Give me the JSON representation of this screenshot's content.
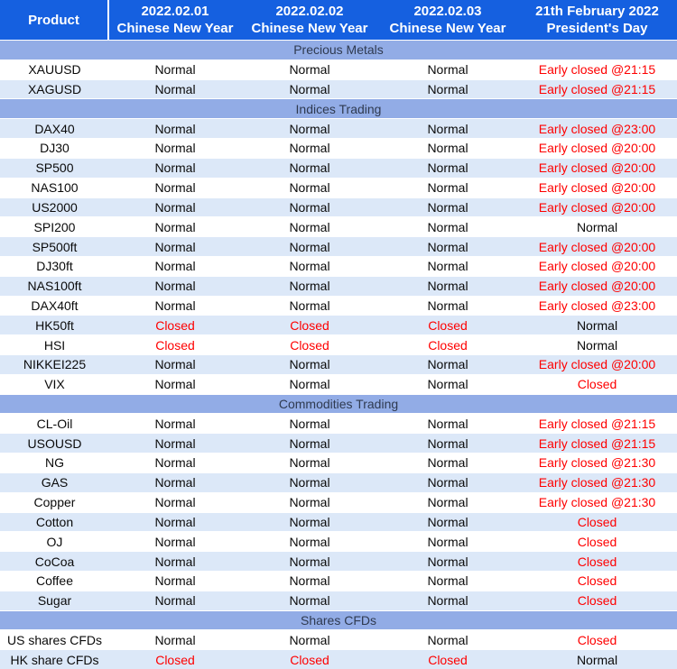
{
  "legend": {
    "normal_value": "Normal"
  },
  "colors": {
    "header_bg": "#1560e0",
    "header_text": "#ffffff",
    "section_bg": "#92ace6",
    "section_text": "#2f3a50",
    "row_alt_bg": "#dce8f8",
    "row_bg": "#ffffff",
    "status_red": "#fe0000",
    "body_text": "#0a0a0a"
  },
  "header": {
    "product_label": "Product",
    "columns": [
      {
        "line1": "2022.02.01",
        "line2": "Chinese New Year"
      },
      {
        "line1": "2022.02.02",
        "line2": "Chinese New Year"
      },
      {
        "line1": "2022.02.03",
        "line2": "Chinese New Year"
      },
      {
        "line1": "21th February 2022",
        "line2": "President's Day"
      }
    ]
  },
  "sections": [
    {
      "title": "Precious Metals",
      "rows": [
        {
          "product": "XAUUSD",
          "shade": false,
          "values": [
            "Normal",
            "Normal",
            "Normal",
            "Early closed @21:15"
          ]
        },
        {
          "product": "XAGUSD",
          "shade": true,
          "values": [
            "Normal",
            "Normal",
            "Normal",
            "Early closed @21:15"
          ]
        }
      ]
    },
    {
      "title": "Indices Trading",
      "rows": [
        {
          "product": "DAX40",
          "shade": true,
          "values": [
            "Normal",
            "Normal",
            "Normal",
            "Early closed @23:00"
          ]
        },
        {
          "product": "DJ30",
          "shade": false,
          "values": [
            "Normal",
            "Normal",
            "Normal",
            "Early closed @20:00"
          ]
        },
        {
          "product": "SP500",
          "shade": true,
          "values": [
            "Normal",
            "Normal",
            "Normal",
            "Early closed @20:00"
          ]
        },
        {
          "product": "NAS100",
          "shade": false,
          "values": [
            "Normal",
            "Normal",
            "Normal",
            "Early closed @20:00"
          ]
        },
        {
          "product": "US2000",
          "shade": true,
          "values": [
            "Normal",
            "Normal",
            "Normal",
            "Early closed @20:00"
          ]
        },
        {
          "product": "SPI200",
          "shade": false,
          "values": [
            "Normal",
            "Normal",
            "Normal",
            "Normal"
          ]
        },
        {
          "product": "SP500ft",
          "shade": true,
          "values": [
            "Normal",
            "Normal",
            "Normal",
            "Early closed @20:00"
          ]
        },
        {
          "product": "DJ30ft",
          "shade": false,
          "values": [
            "Normal",
            "Normal",
            "Normal",
            "Early closed @20:00"
          ]
        },
        {
          "product": "NAS100ft",
          "shade": true,
          "values": [
            "Normal",
            "Normal",
            "Normal",
            "Early closed @20:00"
          ]
        },
        {
          "product": "DAX40ft",
          "shade": false,
          "values": [
            "Normal",
            "Normal",
            "Normal",
            "Early closed @23:00"
          ]
        },
        {
          "product": "HK50ft",
          "shade": true,
          "values": [
            "Closed",
            "Closed",
            "Closed",
            "Normal"
          ]
        },
        {
          "product": "HSI",
          "shade": false,
          "values": [
            "Closed",
            "Closed",
            "Closed",
            "Normal"
          ]
        },
        {
          "product": "NIKKEI225",
          "shade": true,
          "values": [
            "Normal",
            "Normal",
            "Normal",
            "Early closed @20:00"
          ]
        },
        {
          "product": "VIX",
          "shade": false,
          "values": [
            "Normal",
            "Normal",
            "Normal",
            "Closed"
          ]
        }
      ]
    },
    {
      "title": "Commodities Trading",
      "rows": [
        {
          "product": "CL-Oil",
          "shade": false,
          "values": [
            "Normal",
            "Normal",
            "Normal",
            "Early closed @21:15"
          ]
        },
        {
          "product": "USOUSD",
          "shade": true,
          "values": [
            "Normal",
            "Normal",
            "Normal",
            "Early closed @21:15"
          ]
        },
        {
          "product": "NG",
          "shade": false,
          "values": [
            "Normal",
            "Normal",
            "Normal",
            "Early closed @21:30"
          ]
        },
        {
          "product": "GAS",
          "shade": true,
          "values": [
            "Normal",
            "Normal",
            "Normal",
            "Early closed @21:30"
          ]
        },
        {
          "product": "Copper",
          "shade": false,
          "values": [
            "Normal",
            "Normal",
            "Normal",
            "Early closed @21:30"
          ]
        },
        {
          "product": "Cotton",
          "shade": true,
          "values": [
            "Normal",
            "Normal",
            "Normal",
            "Closed"
          ]
        },
        {
          "product": "OJ",
          "shade": false,
          "values": [
            "Normal",
            "Normal",
            "Normal",
            "Closed"
          ]
        },
        {
          "product": "CoCoa",
          "shade": true,
          "values": [
            "Normal",
            "Normal",
            "Normal",
            "Closed"
          ]
        },
        {
          "product": "Coffee",
          "shade": false,
          "values": [
            "Normal",
            "Normal",
            "Normal",
            "Closed"
          ]
        },
        {
          "product": "Sugar",
          "shade": true,
          "values": [
            "Normal",
            "Normal",
            "Normal",
            "Closed"
          ]
        }
      ]
    },
    {
      "title": "Shares CFDs",
      "rows": [
        {
          "product": "US shares CFDs",
          "shade": false,
          "values": [
            "Normal",
            "Normal",
            "Normal",
            "Closed"
          ]
        },
        {
          "product": "HK share CFDs",
          "shade": true,
          "values": [
            "Closed",
            "Closed",
            "Closed",
            "Normal"
          ]
        }
      ]
    }
  ]
}
